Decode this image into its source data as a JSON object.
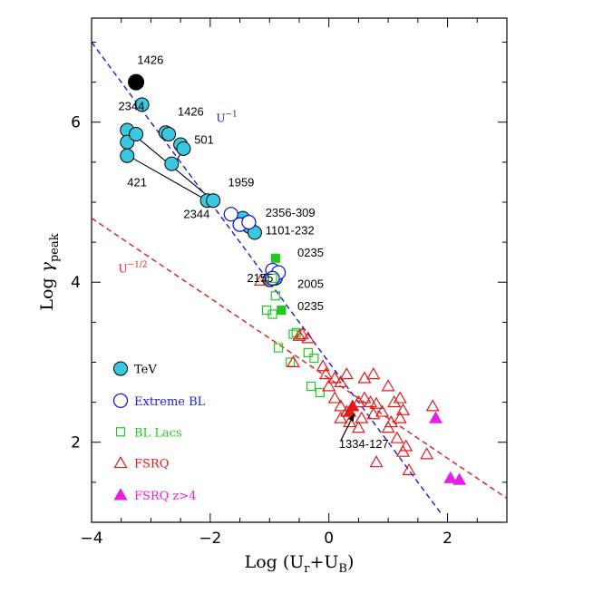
{
  "chart_data": {
    "type": "scatter",
    "xlabel": "Log (U_r+U_B)",
    "ylabel": "Log γ_peak",
    "xlim": [
      -4,
      3
    ],
    "ylim": [
      1,
      7.3
    ],
    "xticks": [
      -4,
      -2,
      0,
      2
    ],
    "yticks": [
      2,
      4,
      6
    ],
    "grid": false,
    "legend_position": "bottom-left",
    "colors": {
      "tev": "#38c9e0",
      "extreme": "#1a1adb",
      "bllac": "#22c922",
      "fsrq": "#e01a1a",
      "fsrq_hz": "#e61ee6",
      "line_u1": "#1a1adb",
      "line_uhalf": "#e01a1a"
    },
    "lines": [
      {
        "label": "U^-1",
        "label_parts": [
          "U",
          "−1"
        ],
        "label_at": [
          -1.9,
          6.0
        ],
        "x": [
          -4.0,
          1.9
        ],
        "y": [
          7.0,
          1.1
        ],
        "color": "#1a1adb"
      },
      {
        "label": "U^-1/2",
        "label_parts": [
          "U",
          "−1/2"
        ],
        "label_at": [
          -3.55,
          4.12
        ],
        "x": [
          -4.0,
          3.0
        ],
        "y": [
          4.8,
          1.3
        ],
        "color": "#e01a1a"
      }
    ],
    "series": [
      {
        "name": "TeV",
        "marker": "circle-filled",
        "color": "#38c9e0",
        "points": [
          [
            -3.4,
            5.9
          ],
          [
            -3.4,
            5.75
          ],
          [
            -3.4,
            5.58
          ],
          [
            -3.25,
            5.85
          ],
          [
            -3.15,
            6.22
          ],
          [
            -2.75,
            5.87
          ],
          [
            -2.7,
            5.85
          ],
          [
            -2.5,
            5.72
          ],
          [
            -2.45,
            5.67
          ],
          [
            -2.65,
            5.48
          ],
          [
            -2.05,
            5.02
          ],
          [
            -1.95,
            5.02
          ],
          [
            -1.45,
            4.8
          ],
          [
            -1.4,
            4.73
          ],
          [
            -1.35,
            4.7
          ],
          [
            -1.25,
            4.62
          ],
          [
            -1.0,
            4.03
          ],
          [
            -0.9,
            4.05
          ]
        ]
      },
      {
        "name": "TeV (1426 high)",
        "marker": "circle-black",
        "color": "#000000",
        "points": [
          [
            -3.25,
            6.5
          ]
        ]
      },
      {
        "name": "Extreme BL",
        "marker": "circle-open",
        "color": "#1a1adb",
        "points": [
          [
            -1.65,
            4.85
          ],
          [
            -1.5,
            4.72
          ],
          [
            -1.35,
            4.75
          ],
          [
            -0.95,
            4.15
          ],
          [
            -0.85,
            4.12
          ],
          [
            -0.95,
            4.05
          ]
        ]
      },
      {
        "name": "BL Lacs",
        "marker": "square-open",
        "color": "#22c922",
        "points": [
          [
            -0.95,
            4.05
          ],
          [
            -0.9,
            3.83
          ],
          [
            -1.05,
            3.65
          ],
          [
            -0.95,
            3.6
          ],
          [
            -0.55,
            3.37
          ],
          [
            -0.6,
            3.35
          ],
          [
            -0.85,
            3.18
          ],
          [
            -0.65,
            3.0
          ],
          [
            -0.35,
            3.12
          ],
          [
            -0.25,
            3.05
          ],
          [
            -0.3,
            2.7
          ],
          [
            -0.15,
            2.62
          ]
        ]
      },
      {
        "name": "BL Lacs (0235)",
        "marker": "square-filled",
        "color": "#22c922",
        "points": [
          [
            -0.9,
            4.3
          ],
          [
            -0.8,
            3.65
          ]
        ]
      },
      {
        "name": "FSRQ",
        "marker": "triangle-open",
        "color": "#e01a1a",
        "points": [
          [
            -1.15,
            4.02
          ],
          [
            -0.5,
            3.33
          ],
          [
            -0.45,
            3.35
          ],
          [
            -0.35,
            3.3
          ],
          [
            -0.6,
            3.0
          ],
          [
            -0.1,
            2.95
          ],
          [
            -0.05,
            2.85
          ],
          [
            0.0,
            2.7
          ],
          [
            0.1,
            2.8
          ],
          [
            0.2,
            2.75
          ],
          [
            0.3,
            2.85
          ],
          [
            0.6,
            2.8
          ],
          [
            0.75,
            2.85
          ],
          [
            1.0,
            2.7
          ],
          [
            0.1,
            2.55
          ],
          [
            0.2,
            2.45
          ],
          [
            0.3,
            2.38
          ],
          [
            0.5,
            2.5
          ],
          [
            0.6,
            2.55
          ],
          [
            0.7,
            2.5
          ],
          [
            0.8,
            2.48
          ],
          [
            0.75,
            2.35
          ],
          [
            0.55,
            2.3
          ],
          [
            0.5,
            2.18
          ],
          [
            0.35,
            2.25
          ],
          [
            0.2,
            2.3
          ],
          [
            0.9,
            2.38
          ],
          [
            1.1,
            2.5
          ],
          [
            1.2,
            2.55
          ],
          [
            1.25,
            2.4
          ],
          [
            1.2,
            2.3
          ],
          [
            1.05,
            2.25
          ],
          [
            1.0,
            2.18
          ],
          [
            1.15,
            2.05
          ],
          [
            1.3,
            1.95
          ],
          [
            1.25,
            1.88
          ],
          [
            1.35,
            1.65
          ],
          [
            0.8,
            1.75
          ],
          [
            1.75,
            2.45
          ],
          [
            1.65,
            1.85
          ]
        ]
      },
      {
        "name": "FSRQ (1334-127)",
        "marker": "triangle-filled",
        "color": "#e01a1a",
        "points": [
          [
            0.35,
            2.38
          ],
          [
            0.4,
            2.45
          ]
        ]
      },
      {
        "name": "FSRQ z>4",
        "marker": "triangle-filled",
        "color": "#e61ee6",
        "points": [
          [
            1.8,
            2.3
          ],
          [
            2.05,
            1.55
          ],
          [
            2.2,
            1.53
          ]
        ]
      }
    ],
    "connectors": [
      {
        "from": [
          -3.38,
          5.9
        ],
        "to": [
          -1.95,
          5.02
        ]
      },
      {
        "from": [
          -3.38,
          5.58
        ],
        "to": [
          -2.05,
          5.02
        ]
      },
      {
        "from": [
          -2.6,
          5.48
        ],
        "to": [
          -2.45,
          5.67
        ]
      }
    ],
    "annotations": [
      {
        "text": "1426",
        "x": -3.23,
        "y": 6.73
      },
      {
        "text": "2344",
        "x": -3.55,
        "y": 6.15
      },
      {
        "text": "1426",
        "x": -2.55,
        "y": 6.08
      },
      {
        "text": "501",
        "x": -2.27,
        "y": 5.73
      },
      {
        "text": "421",
        "x": -3.4,
        "y": 5.2
      },
      {
        "text": "1959",
        "x": -1.7,
        "y": 5.2
      },
      {
        "text": "2344",
        "x": -2.45,
        "y": 4.8
      },
      {
        "text": "2356-309",
        "x": -1.07,
        "y": 4.82
      },
      {
        "text": "1101-232",
        "x": -1.07,
        "y": 4.6
      },
      {
        "text": "0235",
        "x": -0.53,
        "y": 4.32
      },
      {
        "text": "2155",
        "x": -1.38,
        "y": 4.0
      },
      {
        "text": "2005",
        "x": -0.53,
        "y": 3.93
      },
      {
        "text": "0235",
        "x": -0.53,
        "y": 3.65
      },
      {
        "text": "1334-127",
        "x": 0.17,
        "y": 1.93
      }
    ],
    "arrow": {
      "from": [
        0.2,
        2.02
      ],
      "to": [
        0.43,
        2.36
      ]
    },
    "legend": [
      {
        "label": "TeV",
        "marker": "circle-filled",
        "color": "#38c9e0",
        "text_color": "#000000",
        "y": 2.92
      },
      {
        "label": "Extreme BL",
        "marker": "circle-open",
        "color": "#1a1adb",
        "text_color": "#1a1adb",
        "y": 2.52
      },
      {
        "label": "BL Lacs",
        "marker": "square-open",
        "color": "#22c922",
        "text_color": "#22c922",
        "y": 2.13
      },
      {
        "label": "FSRQ",
        "marker": "triangle-open",
        "color": "#e01a1a",
        "text_color": "#e01a1a",
        "y": 1.74
      },
      {
        "label": "FSRQ z>4",
        "marker": "triangle-filled",
        "color": "#e61ee6",
        "text_color": "#e61ee6",
        "y": 1.34
      }
    ]
  }
}
